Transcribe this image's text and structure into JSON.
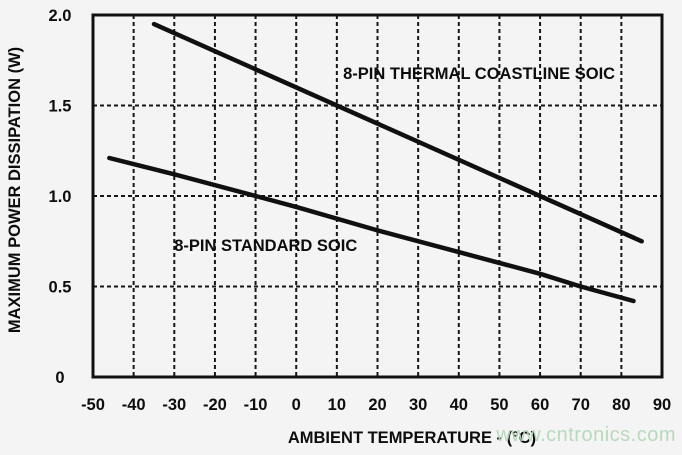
{
  "watermark": {
    "text": "www.cntronics.com",
    "color": "#b5d7ba"
  },
  "chart_data": {
    "type": "line",
    "title": "",
    "xlabel": "AMBIENT TEMPERATURE - (°C)",
    "ylabel": "MAXIMUM POWER DISSIPATION (W)",
    "xlim": [
      -50,
      90
    ],
    "ylim": [
      0,
      2
    ],
    "grid": "dashed",
    "legend_position": "inline-labels",
    "axis_color": "#101010",
    "x_ticks": [
      -50,
      -40,
      -30,
      -20,
      -10,
      0,
      10,
      20,
      30,
      40,
      50,
      60,
      70,
      80,
      90
    ],
    "x_tick_labels": [
      "-50",
      "-40",
      "-30",
      "-20",
      "-10",
      "0",
      "10",
      "20",
      "30",
      "40",
      "50",
      "60",
      "70",
      "80",
      "90"
    ],
    "y_ticks": [
      0,
      0.5,
      1,
      1.5,
      2
    ],
    "y_tick_labels": [
      "0",
      "0.5",
      "1.0",
      "1.5",
      "2.0"
    ],
    "series": [
      {
        "name": "8-PIN THERMAL COASTLINE SOIC",
        "color": "#101010",
        "points": [
          [
            -35,
            1.95
          ],
          [
            85,
            0.75
          ]
        ],
        "label_anchor": {
          "x": 45,
          "y": 1.68
        }
      },
      {
        "name": "8-PIN STANDARD SOIC",
        "color": "#101010",
        "points": [
          [
            -46,
            1.21
          ],
          [
            -30,
            1.12
          ],
          [
            -10,
            1.0
          ],
          [
            0,
            0.94
          ],
          [
            20,
            0.81
          ],
          [
            40,
            0.69
          ],
          [
            60,
            0.57
          ],
          [
            70,
            0.5
          ],
          [
            83,
            0.42
          ]
        ],
        "label_anchor": {
          "x": -7.5,
          "y": 0.73
        }
      }
    ]
  }
}
